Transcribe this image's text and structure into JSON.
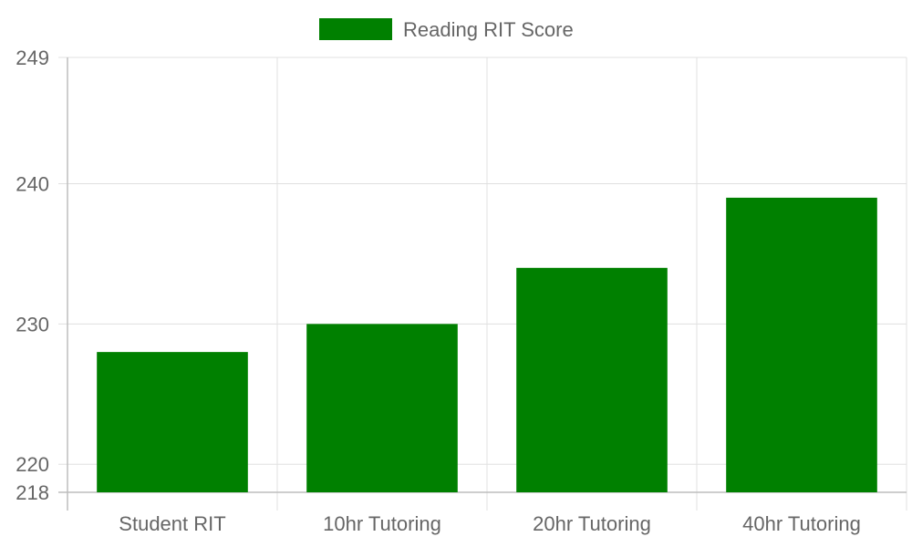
{
  "chart_data": {
    "type": "bar",
    "categories": [
      "Student RIT",
      "10hr Tutoring",
      "20hr Tutoring",
      "40hr Tutoring"
    ],
    "series": [
      {
        "name": "Reading RIT Score",
        "values": [
          228,
          230,
          234,
          239
        ],
        "color": "#008000"
      }
    ],
    "ylim": [
      218,
      249
    ],
    "yticks": [
      218,
      220,
      230,
      240,
      249
    ],
    "grid": true,
    "legend_position": "top-center",
    "colors": {
      "bar": "#008000",
      "grid": "#e0e0e0",
      "axis": "#bdbdbd",
      "label": "#666666"
    }
  }
}
